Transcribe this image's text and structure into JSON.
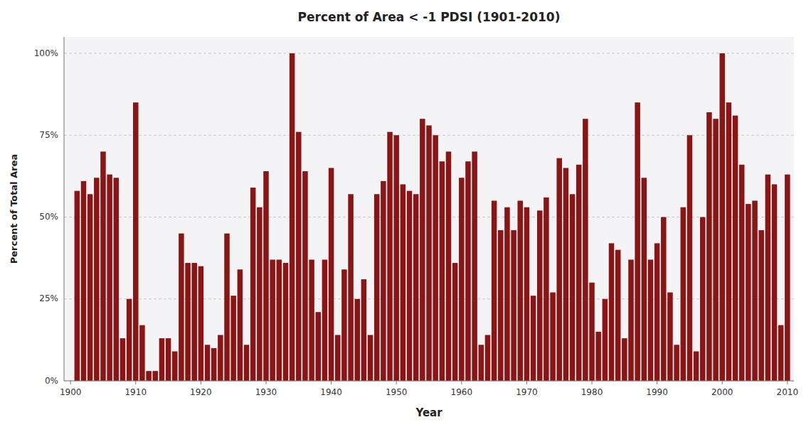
{
  "chart_data": {
    "type": "bar",
    "title": "Percent of Area < -1 PDSI (1901-2010)",
    "xlabel": "Year",
    "ylabel": "Percent of Total Area",
    "color": "#8B1515",
    "x": [
      1901,
      1902,
      1903,
      1904,
      1905,
      1906,
      1907,
      1908,
      1909,
      1910,
      1911,
      1912,
      1913,
      1914,
      1915,
      1916,
      1917,
      1918,
      1919,
      1920,
      1921,
      1922,
      1923,
      1924,
      1925,
      1926,
      1927,
      1928,
      1929,
      1930,
      1931,
      1932,
      1933,
      1934,
      1935,
      1936,
      1937,
      1938,
      1939,
      1940,
      1941,
      1942,
      1943,
      1944,
      1945,
      1946,
      1947,
      1948,
      1949,
      1950,
      1951,
      1952,
      1953,
      1954,
      1955,
      1956,
      1957,
      1958,
      1959,
      1960,
      1961,
      1962,
      1963,
      1964,
      1965,
      1966,
      1967,
      1968,
      1969,
      1970,
      1971,
      1972,
      1973,
      1974,
      1975,
      1976,
      1977,
      1978,
      1979,
      1980,
      1981,
      1982,
      1983,
      1984,
      1985,
      1986,
      1987,
      1988,
      1989,
      1990,
      1991,
      1992,
      1993,
      1994,
      1995,
      1996,
      1997,
      1998,
      1999,
      2000,
      2001,
      2002,
      2003,
      2004,
      2005,
      2006,
      2007,
      2008,
      2009,
      2010
    ],
    "values": [
      58,
      61,
      57,
      62,
      70,
      63,
      62,
      13,
      25,
      85,
      17,
      3,
      3,
      13,
      13,
      9,
      45,
      36,
      36,
      35,
      11,
      10,
      14,
      45,
      26,
      34,
      11,
      59,
      53,
      64,
      37,
      37,
      36,
      100,
      76,
      64,
      37,
      21,
      37,
      65,
      14,
      34,
      57,
      25,
      31,
      14,
      57,
      61,
      76,
      75,
      60,
      58,
      57,
      80,
      78,
      75,
      67,
      70,
      36,
      62,
      67,
      70,
      11,
      14,
      55,
      46,
      53,
      46,
      55,
      53,
      26,
      52,
      56,
      27,
      68,
      65,
      57,
      66,
      80,
      30,
      15,
      25,
      42,
      40,
      13,
      37,
      85,
      62,
      37,
      42,
      50,
      27,
      11,
      53,
      75,
      9,
      50,
      82,
      80,
      100,
      85,
      81,
      66,
      54,
      55,
      46,
      63,
      60,
      17,
      63
    ],
    "xlim": [
      1899,
      2011
    ],
    "xticks": [
      1900,
      1910,
      1920,
      1930,
      1940,
      1950,
      1960,
      1970,
      1980,
      1990,
      2000,
      2010
    ],
    "ylim": [
      0,
      105
    ],
    "yticks": [
      {
        "value": 0,
        "label": "0%"
      },
      {
        "value": 25,
        "label": "25%"
      },
      {
        "value": 50,
        "label": "50%"
      },
      {
        "value": 75,
        "label": "75%"
      },
      {
        "value": 100,
        "label": "100%"
      }
    ],
    "grid": true
  }
}
